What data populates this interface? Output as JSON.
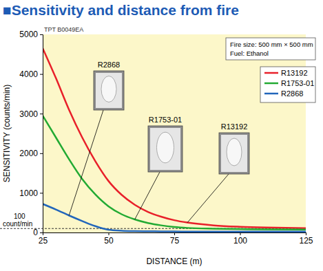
{
  "chart_data": {
    "type": "line",
    "title": "■Sensitivity and distance from fire",
    "figure_id": "TPT B0049EA",
    "x_label": "DISTANCE (m)",
    "y_label": "SENSITIVITY (counts/min)",
    "annotations": [
      "Fire size: 500 mm × 500 mm",
      "Fuel: Ethanol"
    ],
    "image_labels": [
      "R2868",
      "R1753-01",
      "R13192"
    ],
    "reference_line": {
      "value": 100,
      "label": "count/min"
    },
    "x": [
      25,
      30,
      35,
      40,
      45,
      50,
      55,
      60,
      65,
      70,
      75,
      80,
      90,
      100,
      110,
      125
    ],
    "series": [
      {
        "name": "R13192",
        "color": "#e8202a",
        "values": [
          4650,
          3900,
          3100,
          2400,
          1800,
          1300,
          950,
          700,
          520,
          400,
          310,
          250,
          180,
          145,
          125,
          110
        ]
      },
      {
        "name": "R1753-01",
        "color": "#22aa33",
        "values": [
          2950,
          2400,
          1850,
          1350,
          960,
          660,
          460,
          330,
          240,
          180,
          140,
          115,
          95,
          85,
          80,
          75
        ]
      },
      {
        "name": "R2868",
        "color": "#2266bb",
        "values": [
          720,
          580,
          430,
          290,
          160,
          70,
          45,
          35,
          30,
          28,
          25,
          22,
          20,
          20,
          20,
          20
        ]
      }
    ],
    "xlim": [
      25,
      125
    ],
    "xticks": [
      25,
      50,
      75,
      100,
      125
    ],
    "ylim": [
      0,
      5000
    ],
    "yticks": [
      0,
      1000,
      2000,
      3000,
      4000,
      5000
    ],
    "grid": false,
    "legend": "upper right"
  }
}
